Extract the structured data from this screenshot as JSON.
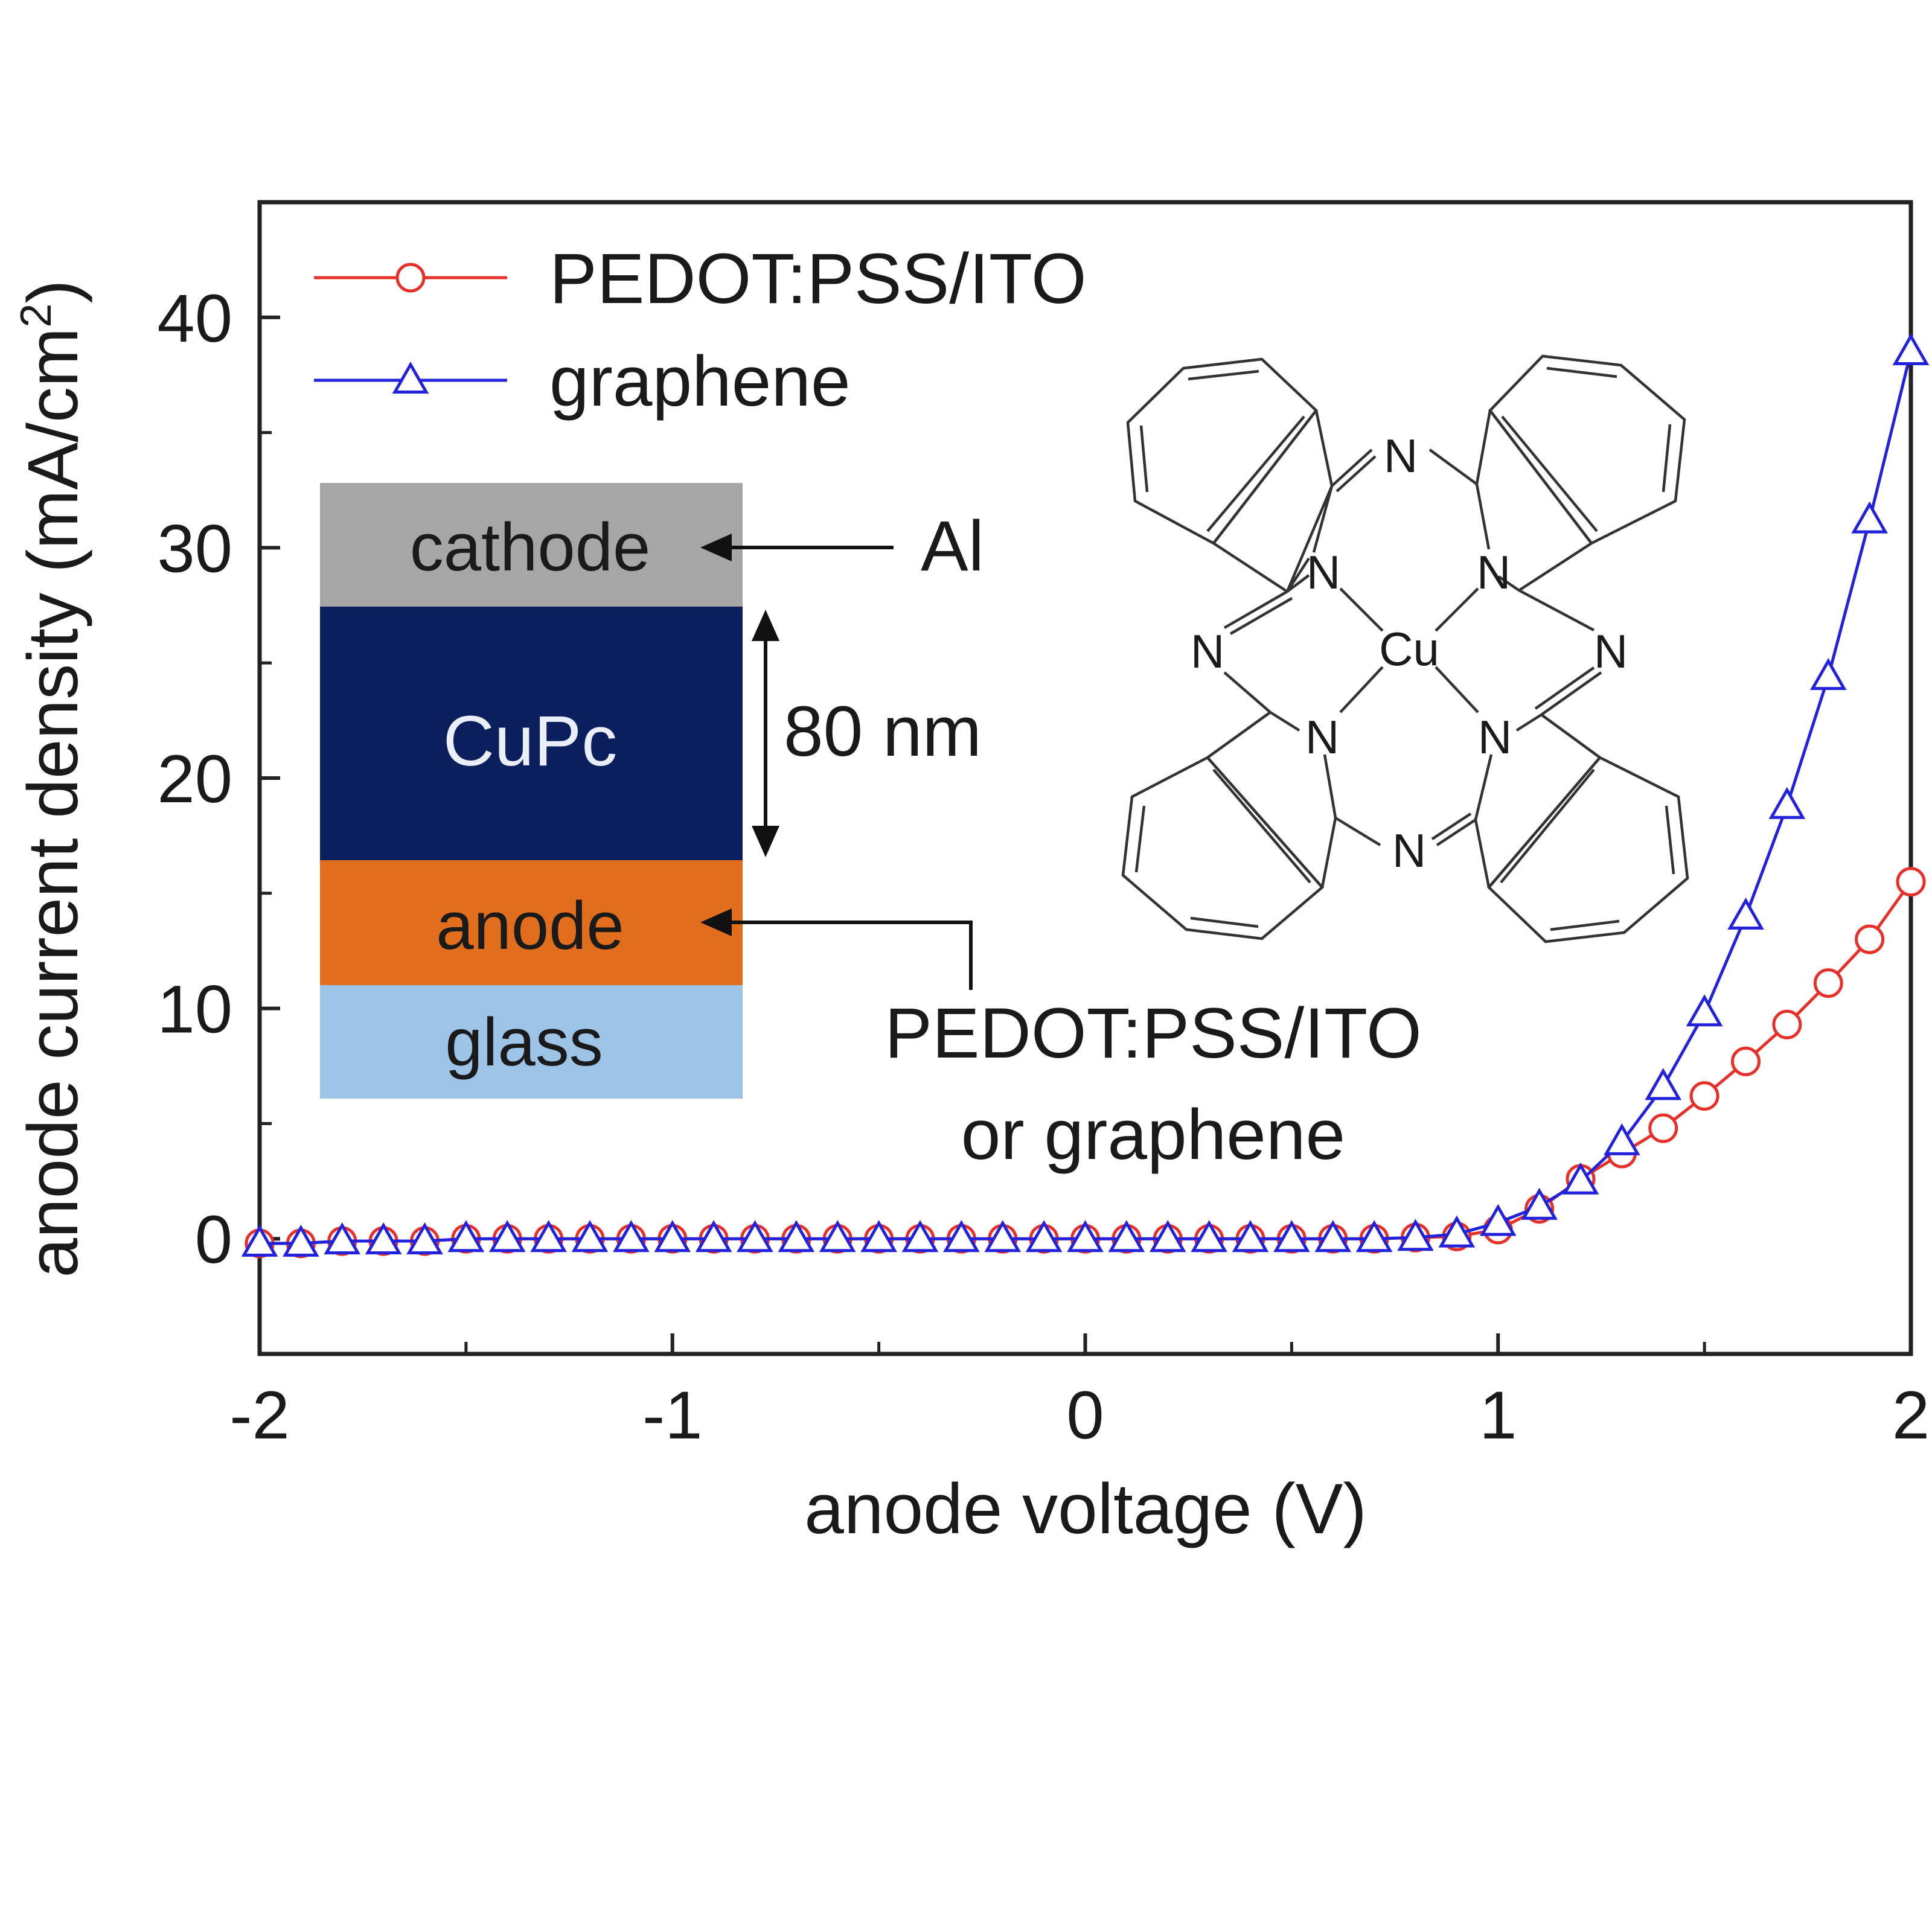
{
  "chart_data": {
    "type": "line",
    "title": "",
    "xlabel": "anode voltage (V)",
    "ylabel_main": "anode current density (mA/cm",
    "ylabel_sup": "2",
    "ylabel_close": ")",
    "xlim": [
      -2,
      2
    ],
    "ylim": [
      -5,
      45
    ],
    "x_ticks": [
      -2,
      -1,
      0,
      1,
      2
    ],
    "x_tick_labels": [
      "-2",
      "-1",
      "0",
      "1",
      "2"
    ],
    "x_minor_ticks": [
      -1.5,
      -0.5,
      0.5,
      1.5
    ],
    "y_ticks": [
      0,
      10,
      20,
      30,
      40
    ],
    "y_tick_labels": [
      "0",
      "10",
      "20",
      "30",
      "40"
    ],
    "y_minor_ticks": [
      5,
      15,
      25,
      35
    ],
    "grid": false,
    "legend_position": "top-left",
    "x": [
      -2.0,
      -1.9,
      -1.8,
      -1.7,
      -1.6,
      -1.5,
      -1.4,
      -1.3,
      -1.2,
      -1.1,
      -1.0,
      -0.9,
      -0.8,
      -0.7,
      -0.6,
      -0.5,
      -0.4,
      -0.3,
      -0.2,
      -0.1,
      0.0,
      0.1,
      0.2,
      0.3,
      0.4,
      0.5,
      0.6,
      0.7,
      0.8,
      0.9,
      1.0,
      1.1,
      1.2,
      1.3,
      1.4,
      1.5,
      1.6,
      1.7,
      1.8,
      1.9,
      2.0
    ],
    "series": [
      {
        "name": "PEDOT:PSS/ITO",
        "color": "#e8302a",
        "marker": "circle",
        "values": [
          -0.2,
          -0.2,
          -0.1,
          -0.1,
          -0.1,
          0,
          0,
          0,
          0,
          0,
          0,
          0,
          0,
          0,
          0,
          0,
          0,
          0,
          0,
          0,
          0,
          0,
          0,
          0,
          0,
          0,
          0,
          0,
          0.05,
          0.1,
          0.4,
          1.3,
          2.6,
          3.7,
          4.8,
          6.2,
          7.7,
          9.3,
          11.1,
          13.0,
          15.5
        ]
      },
      {
        "name": "graphene",
        "color": "#2222dd",
        "marker": "triangle",
        "values": [
          -0.2,
          -0.2,
          -0.1,
          -0.1,
          -0.1,
          0,
          0,
          0,
          0,
          0,
          0,
          0,
          0,
          0,
          0,
          0,
          0,
          0,
          0,
          0,
          0,
          0,
          0,
          0,
          0,
          0,
          0,
          0,
          0.05,
          0.2,
          0.7,
          1.4,
          2.5,
          4.2,
          6.6,
          9.8,
          14.0,
          18.8,
          24.4,
          31.2,
          38.5
        ]
      }
    ]
  },
  "inset": {
    "layers": [
      {
        "label": "cathode",
        "color": "#a6a6a6",
        "text_color": "#1a1a1a"
      },
      {
        "label": "CuPc",
        "color": "#0a1f5c",
        "text_color": "#e9eef8"
      },
      {
        "label": "anode",
        "color": "#e06e1c",
        "text_color": "#1a1a1a"
      },
      {
        "label": "glass",
        "color": "#9dc3e6",
        "text_color": "#1a1a1a"
      }
    ],
    "cathode_material": "Al",
    "thickness": "80 nm",
    "anode_material_line1": "PEDOT:PSS/ITO",
    "anode_material_line2": "or graphene"
  },
  "molecule": {
    "atom_N": "N",
    "atom_Cu": "Cu"
  }
}
